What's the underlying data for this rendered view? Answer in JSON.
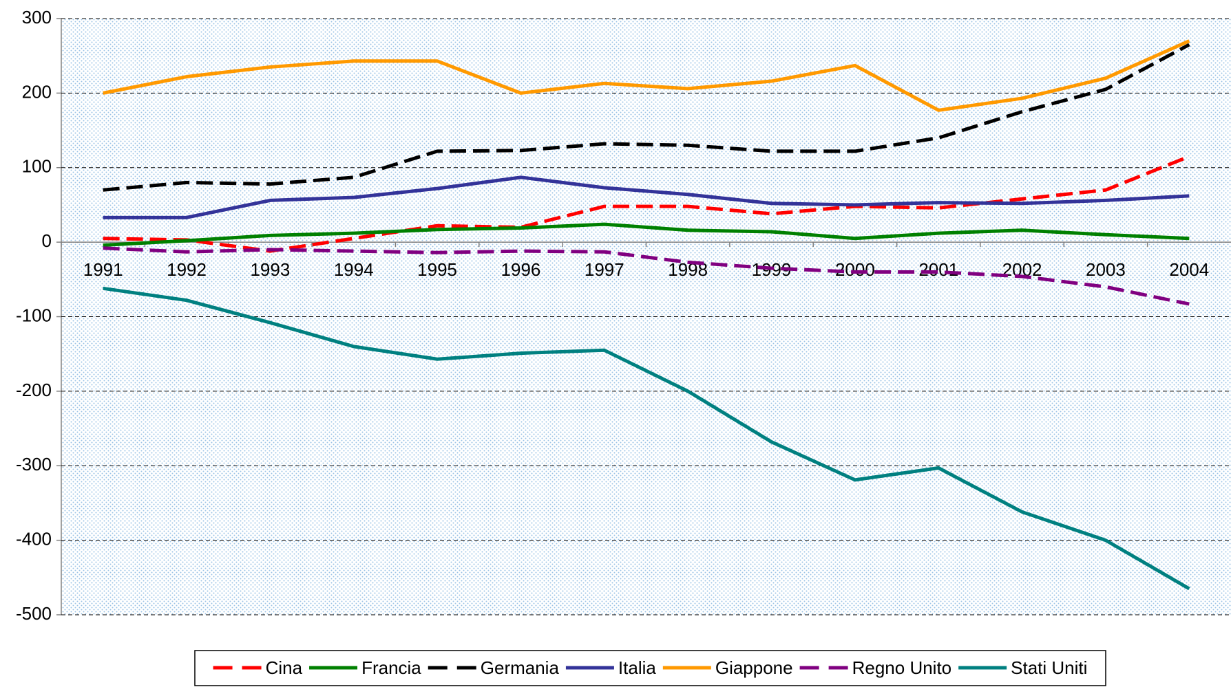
{
  "chart_data": {
    "type": "line",
    "categories": [
      "1991",
      "1992",
      "1993",
      "1994",
      "1995",
      "1996",
      "1997",
      "1998",
      "1999",
      "2000",
      "2001",
      "2002",
      "2003",
      "2004"
    ],
    "series": [
      {
        "name": "Cina",
        "color": "#ff0000",
        "dashed": true,
        "values": [
          5,
          3,
          -12,
          5,
          22,
          20,
          48,
          48,
          38,
          48,
          46,
          58,
          70,
          115
        ]
      },
      {
        "name": "Francia",
        "color": "#008000",
        "dashed": false,
        "values": [
          -4,
          2,
          9,
          12,
          17,
          19,
          24,
          16,
          14,
          5,
          12,
          16,
          10,
          5
        ]
      },
      {
        "name": "Germania",
        "color": "#000000",
        "dashed": true,
        "values": [
          70,
          80,
          78,
          87,
          122,
          123,
          132,
          130,
          122,
          122,
          140,
          175,
          205,
          265
        ]
      },
      {
        "name": "Italia",
        "color": "#333399",
        "dashed": false,
        "values": [
          33,
          33,
          56,
          60,
          72,
          87,
          73,
          64,
          52,
          50,
          53,
          52,
          56,
          62
        ]
      },
      {
        "name": "Giappone",
        "color": "#ff9900",
        "dashed": false,
        "values": [
          200,
          222,
          235,
          243,
          243,
          200,
          213,
          206,
          216,
          237,
          177,
          193,
          220,
          270
        ]
      },
      {
        "name": "Regno Unito",
        "color": "#800080",
        "dashed": true,
        "values": [
          -8,
          -13,
          -10,
          -12,
          -14,
          -12,
          -13,
          -27,
          -35,
          -40,
          -40,
          -46,
          -60,
          -83
        ]
      },
      {
        "name": "Stati Uniti",
        "color": "#008080",
        "dashed": false,
        "values": [
          -62,
          -78,
          -108,
          -140,
          -157,
          -149,
          -145,
          -200,
          -268,
          -319,
          -303,
          -362,
          -400,
          -465
        ]
      }
    ],
    "ylim": [
      -500,
      300
    ],
    "yticks": [
      -500,
      -400,
      -300,
      -200,
      -100,
      0,
      100,
      200,
      300
    ],
    "grid": true,
    "legend": "bottom"
  }
}
